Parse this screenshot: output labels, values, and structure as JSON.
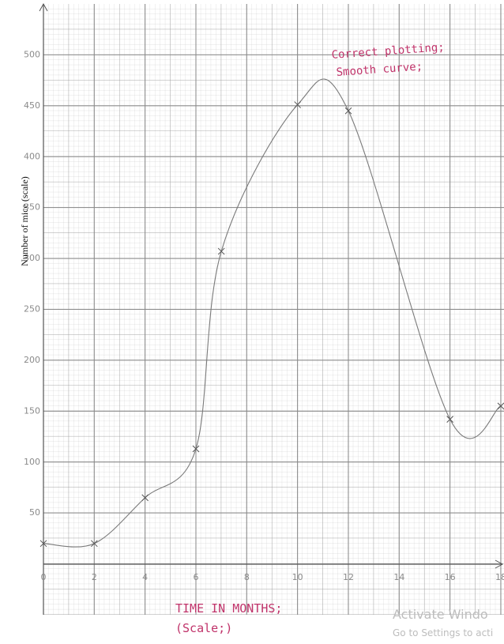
{
  "chart_data": {
    "type": "line",
    "x_label": "TIME IN MONTHS;",
    "x_label_2": "(Scale;)",
    "y_label": "Number of mice (scale)",
    "annotation": [
      "Correct plotting;",
      "Smooth curve;"
    ],
    "x": [
      0,
      2,
      4,
      6,
      7,
      10,
      12,
      16,
      18
    ],
    "series": [
      {
        "color": "#7a7a7a",
        "values": [
          20,
          20,
          65,
          113,
          307,
          451,
          445,
          142,
          155
        ]
      }
    ],
    "marker": "x",
    "xlim": [
      0,
      18
    ],
    "ylim": [
      -50,
      550
    ],
    "xticks": [
      0,
      2,
      4,
      6,
      8,
      10,
      12,
      14,
      16,
      18
    ],
    "yticks": [
      50,
      100,
      150,
      200,
      250,
      300,
      350,
      400,
      450,
      500
    ],
    "grid": true
  },
  "watermark": [
    "Activate Windo",
    "Go to Settings to acti"
  ]
}
